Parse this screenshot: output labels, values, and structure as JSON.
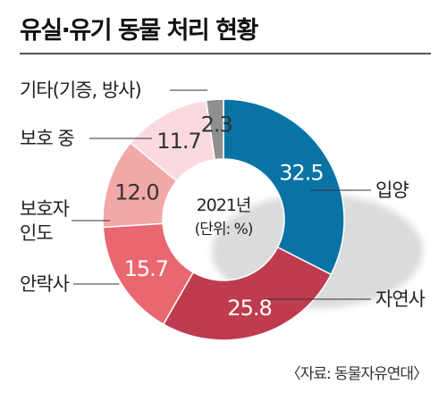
{
  "title": "유실·유기 동물 처리 현황",
  "source": "〈자료: 동물자유연대〉",
  "chart_data": {
    "type": "pie",
    "center_year": "2021년",
    "center_unit": "(단위: %)",
    "slices": [
      {
        "category": "입양",
        "value": 32.5,
        "value_label": "32.5",
        "color": "#0a73a6"
      },
      {
        "category": "자연사",
        "value": 25.8,
        "value_label": "25.8",
        "color": "#be3c4e"
      },
      {
        "category": "안락사",
        "value": 15.7,
        "value_label": "15.7",
        "color": "#e9676f"
      },
      {
        "category": "보호자 인도",
        "value": 12.0,
        "value_label": "12.0",
        "color": "#f3a8a8"
      },
      {
        "category": "보호 중",
        "value": 11.7,
        "value_label": "11.7",
        "color": "#fadadf"
      },
      {
        "category": "기타(기증, 방사)",
        "value": 2.3,
        "value_label": "2.3",
        "color": "#8f8f8f"
      }
    ]
  }
}
